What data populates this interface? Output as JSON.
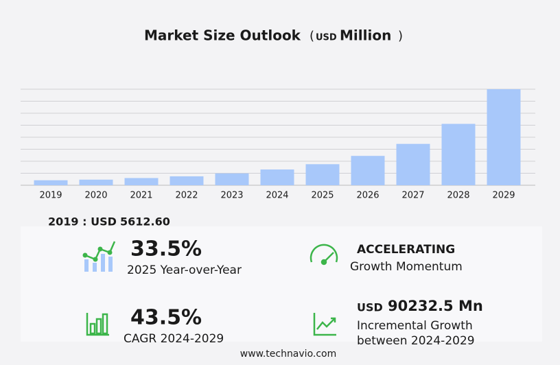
{
  "chart_data": {
    "type": "bar",
    "title": "Market Size Outlook",
    "title_unit_open": "(",
    "title_unit_currency": "USD",
    "title_unit_scale": "Million",
    "title_unit_close": ")",
    "categories": [
      "2019",
      "2020",
      "2021",
      "2022",
      "2023",
      "2024",
      "2025",
      "2026",
      "2027",
      "2028",
      "2029"
    ],
    "values": [
      5612.6,
      6300,
      8100,
      10000,
      13300,
      17728,
      23667,
      33000,
      46500,
      69000,
      107960
    ],
    "color": "#a8c8fa",
    "ylim": [
      0,
      107960
    ],
    "grid": true
  },
  "stats": {
    "base_label": "2019 : USD",
    "base_value": "5612.60",
    "yoy_value": "33.5%",
    "yoy_label": "2025 Year-over-Year",
    "momentum_value": "ACCELERATING",
    "momentum_label": "Growth Momentum",
    "cagr_value": "43.5%",
    "cagr_label": "CAGR 2024-2029",
    "incr_currency": "USD",
    "incr_value": "90232.5 Mn",
    "incr_label_1": "Incremental Growth",
    "incr_label_2": "between 2024-2029"
  },
  "footer": "www.technavio.com"
}
